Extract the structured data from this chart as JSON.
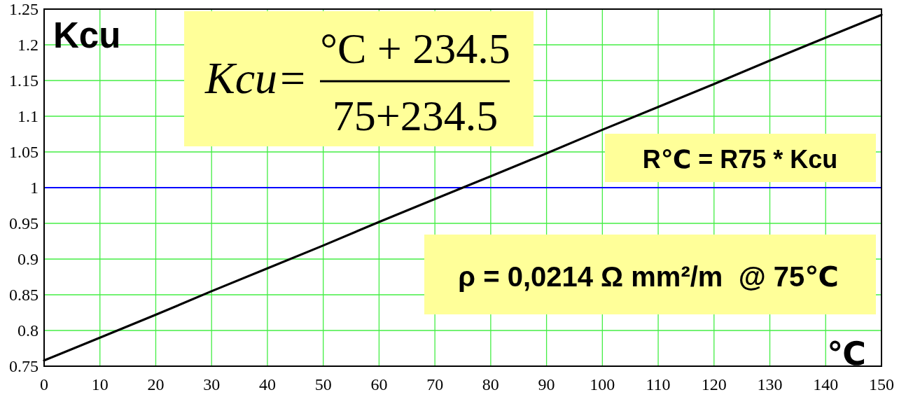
{
  "chart_data": {
    "type": "line",
    "xlabel": "℃",
    "ylabel": "Kcu",
    "x": [
      0,
      10,
      20,
      30,
      40,
      50,
      60,
      70,
      80,
      90,
      100,
      110,
      120,
      130,
      140,
      150
    ],
    "series": [
      {
        "color": "#000000",
        "values": [
          0.758,
          0.79,
          0.822,
          0.855,
          0.887,
          0.919,
          0.952,
          0.984,
          1.016,
          1.048,
          1.081,
          1.113,
          1.145,
          1.178,
          1.21,
          1.242
        ]
      }
    ],
    "xlim": [
      0,
      150
    ],
    "xticks": [
      0,
      10,
      20,
      30,
      40,
      50,
      60,
      70,
      80,
      90,
      100,
      110,
      120,
      130,
      140,
      150
    ],
    "ylim": [
      0.75,
      1.25
    ],
    "yticks": [
      0.75,
      0.8,
      0.85,
      0.9,
      0.95,
      1,
      1.05,
      1.1,
      1.15,
      1.2,
      1.25
    ],
    "grid": true,
    "ref_lines": [
      {
        "axis": "y",
        "value": 1,
        "color": "#0000ff"
      }
    ],
    "annotations": [
      "Kcu=",
      "°C + 234.5",
      "75+234.5",
      "R℃ = R75 * Kcu",
      "ρ = 0,0214 Ω mm²/m  @ 75℃"
    ]
  }
}
